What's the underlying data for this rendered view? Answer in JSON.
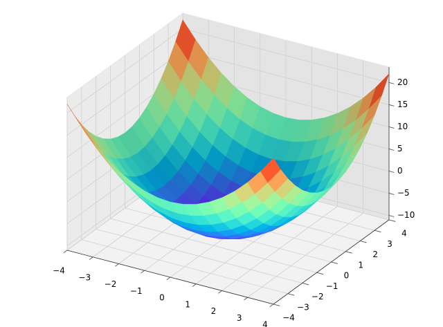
{
  "chart_data": {
    "type": "surface",
    "colormap": "rainbow",
    "x": [
      -4,
      -3.5,
      -3,
      -2.5,
      -2,
      -1.5,
      -1,
      -0.5,
      0,
      0.5,
      1,
      1.5,
      2,
      2.5,
      3,
      3.5,
      4
    ],
    "y": [
      -4,
      -3.5,
      -3,
      -2.5,
      -2,
      -1.5,
      -1,
      -0.5,
      0,
      0.5,
      1,
      1.5,
      2,
      2.5,
      3,
      3.5,
      4
    ],
    "z": [
      [
        22,
        18.25,
        15,
        12.25,
        10,
        8.25,
        7,
        6.25,
        6,
        6.25,
        7,
        8.25,
        10,
        12.25,
        15,
        18.25,
        22
      ],
      [
        18.25,
        14.5,
        11.25,
        8.5,
        6.25,
        4.5,
        3.25,
        2.5,
        2.25,
        2.5,
        3.25,
        4.5,
        6.25,
        8.5,
        11.25,
        14.5,
        18.25
      ],
      [
        15,
        11.25,
        8,
        5.25,
        3,
        1.25,
        0,
        -0.75,
        -1,
        -0.75,
        0,
        1.25,
        3,
        5.25,
        8,
        11.25,
        15
      ],
      [
        12.25,
        8.5,
        5.25,
        2.5,
        0.25,
        -1.5,
        -2.75,
        -3.5,
        -3.75,
        -3.5,
        -2.75,
        -1.5,
        0.25,
        2.5,
        5.25,
        8.5,
        12.25
      ],
      [
        10,
        6.25,
        3,
        0.25,
        -2,
        -3.75,
        -5,
        -5.75,
        -6,
        -5.75,
        -5,
        -3.75,
        -2,
        0.25,
        3,
        6.25,
        10
      ],
      [
        8.25,
        4.5,
        1.25,
        -1.5,
        -3.75,
        -5.5,
        -6.75,
        -7.5,
        -7.75,
        -7.5,
        -6.75,
        -5.5,
        -3.75,
        -1.5,
        1.25,
        4.5,
        8.25
      ],
      [
        7,
        3.25,
        0,
        -2.75,
        -5,
        -6.75,
        -8,
        -8.75,
        -9,
        -8.75,
        -8,
        -6.75,
        -5,
        -2.75,
        0,
        3.25,
        7
      ],
      [
        6.25,
        2.5,
        -0.75,
        -3.5,
        -5.75,
        -7.5,
        -8.75,
        -9.5,
        -9.75,
        -9.5,
        -8.75,
        -7.5,
        -5.75,
        -3.5,
        -0.75,
        2.5,
        6.25
      ],
      [
        6,
        2.25,
        -1,
        -3.75,
        -6,
        -7.75,
        -9,
        -9.75,
        -10,
        -9.75,
        -9,
        -7.75,
        -6,
        -3.75,
        -1,
        2.25,
        6
      ],
      [
        6.25,
        2.5,
        -0.75,
        -3.5,
        -5.75,
        -7.5,
        -8.75,
        -9.5,
        -9.75,
        -9.5,
        -8.75,
        -7.5,
        -5.75,
        -3.5,
        -0.75,
        2.5,
        6.25
      ],
      [
        7,
        3.25,
        0,
        -2.75,
        -5,
        -6.75,
        -8,
        -8.75,
        -9,
        -8.75,
        -8,
        -6.75,
        -5,
        -2.75,
        0,
        3.25,
        7
      ],
      [
        8.25,
        4.5,
        1.25,
        -1.5,
        -3.75,
        -5.5,
        -6.75,
        -7.5,
        -7.75,
        -7.5,
        -6.75,
        -5.5,
        -3.75,
        -1.5,
        1.25,
        4.5,
        8.25
      ],
      [
        10,
        6.25,
        3,
        0.25,
        -2,
        -3.75,
        -5,
        -5.75,
        -6,
        -5.75,
        -5,
        -3.75,
        -2,
        0.25,
        3,
        6.25,
        10
      ],
      [
        12.25,
        8.5,
        5.25,
        2.5,
        0.25,
        -1.5,
        -2.75,
        -3.5,
        -3.75,
        -3.5,
        -2.75,
        -1.5,
        0.25,
        2.5,
        5.25,
        8.5,
        12.25
      ],
      [
        15,
        11.25,
        8,
        5.25,
        3,
        1.25,
        0,
        -0.75,
        -1,
        -0.75,
        0,
        1.25,
        3,
        5.25,
        8,
        11.25,
        15
      ],
      [
        18.25,
        14.5,
        11.25,
        8.5,
        6.25,
        4.5,
        3.25,
        2.5,
        2.25,
        2.5,
        3.25,
        4.5,
        6.25,
        8.5,
        11.25,
        14.5,
        18.25
      ],
      [
        22,
        18.25,
        15,
        12.25,
        10,
        8.25,
        7,
        6.25,
        6,
        6.25,
        7,
        8.25,
        10,
        12.25,
        15,
        18.25,
        22
      ]
    ],
    "xlim": [
      -4,
      4
    ],
    "ylim": [
      -4,
      4
    ],
    "zlim": [
      -11,
      23.5
    ],
    "xticks": [
      {
        "value": -4,
        "label": "−4"
      },
      {
        "value": -3,
        "label": "−3"
      },
      {
        "value": -2,
        "label": "−2"
      },
      {
        "value": -1,
        "label": "−1"
      },
      0,
      1,
      2,
      3,
      4
    ],
    "yticks": [
      {
        "value": -4,
        "label": "−4"
      },
      {
        "value": -3,
        "label": "−3"
      },
      {
        "value": -2,
        "label": "−2"
      },
      {
        "value": -1,
        "label": "−1"
      },
      0,
      1,
      2,
      3,
      4
    ],
    "zticks": [
      {
        "value": -10,
        "label": "−10"
      },
      {
        "value": -5,
        "label": "−5"
      },
      0,
      5,
      10,
      15,
      20
    ],
    "grid": true
  }
}
